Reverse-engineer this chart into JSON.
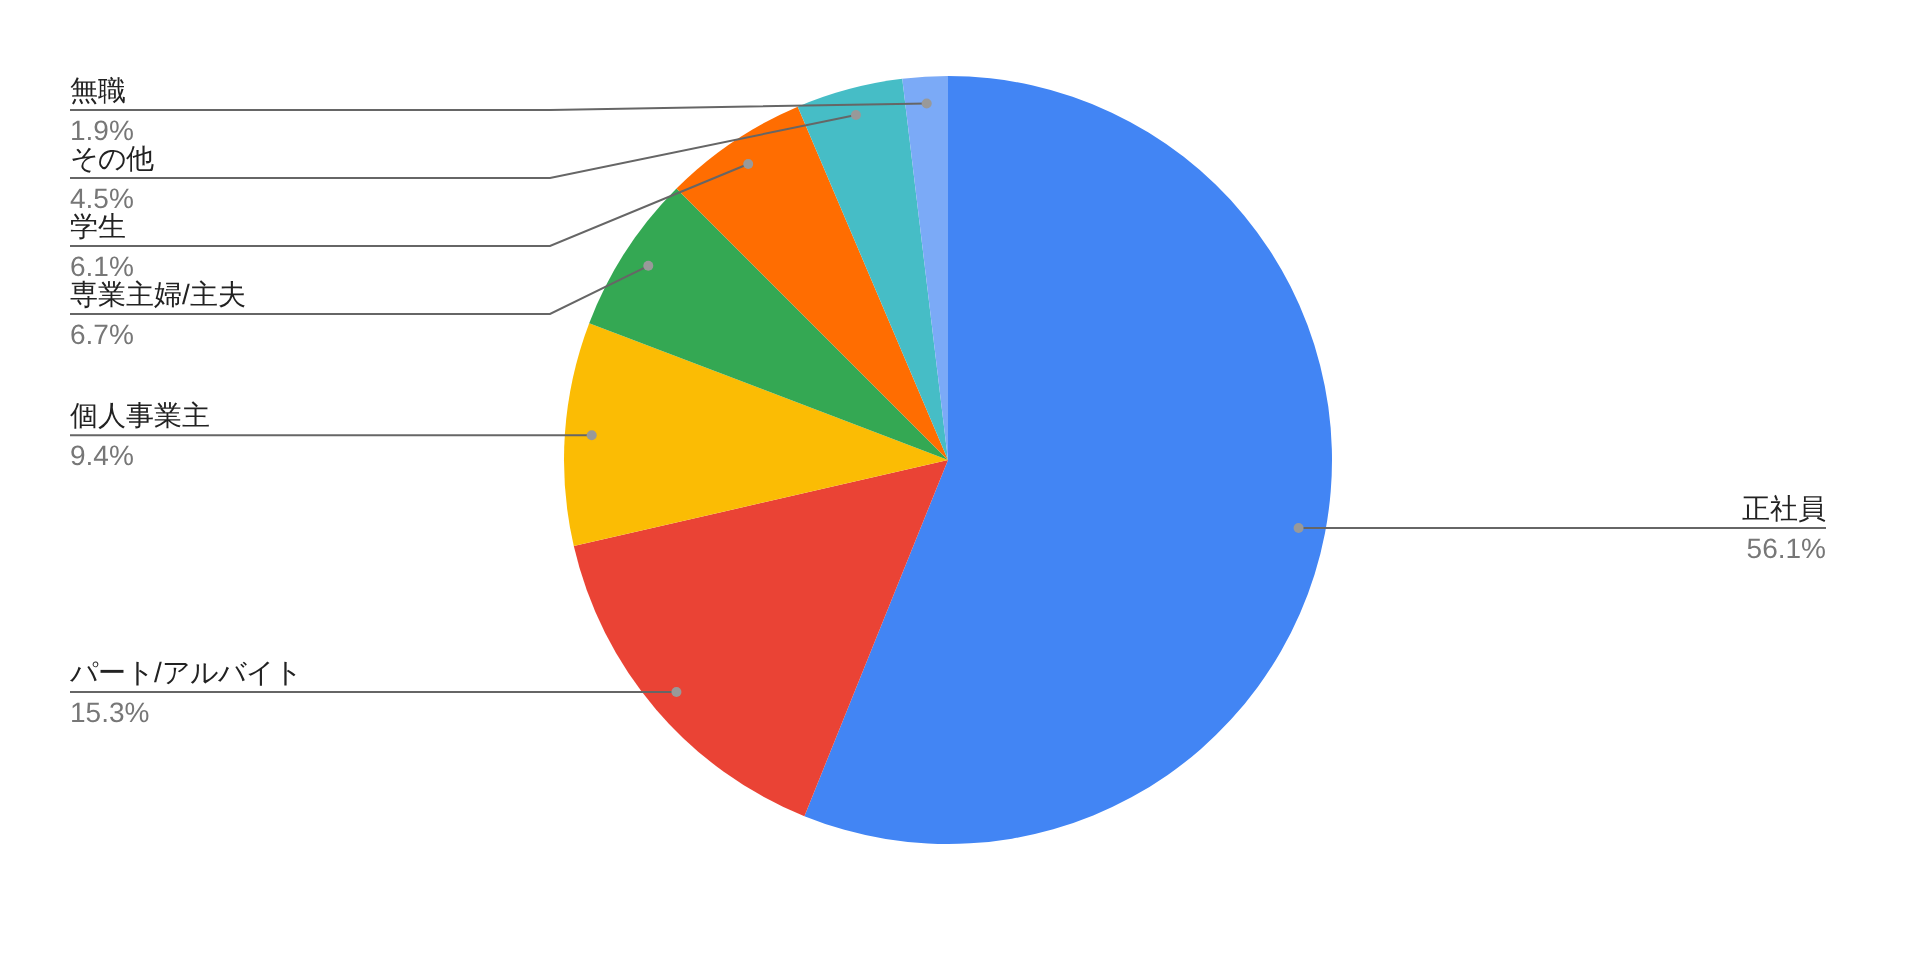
{
  "chart_data": {
    "type": "pie",
    "categories": [
      "正社員",
      "パート/アルバイト",
      "個人事業主",
      "専業主婦/主夫",
      "学生",
      "その他",
      "無職"
    ],
    "values": [
      56.1,
      15.3,
      9.4,
      6.7,
      6.1,
      4.5,
      1.9
    ],
    "colors": [
      "#4285f4",
      "#ea4335",
      "#fbbc04",
      "#34a853",
      "#ff6d01",
      "#46bdc6",
      "#7baaf7"
    ],
    "value_labels": [
      "56.1%",
      "15.3%",
      "9.4%",
      "6.7%",
      "6.1%",
      "4.5%",
      "1.9%"
    ]
  }
}
